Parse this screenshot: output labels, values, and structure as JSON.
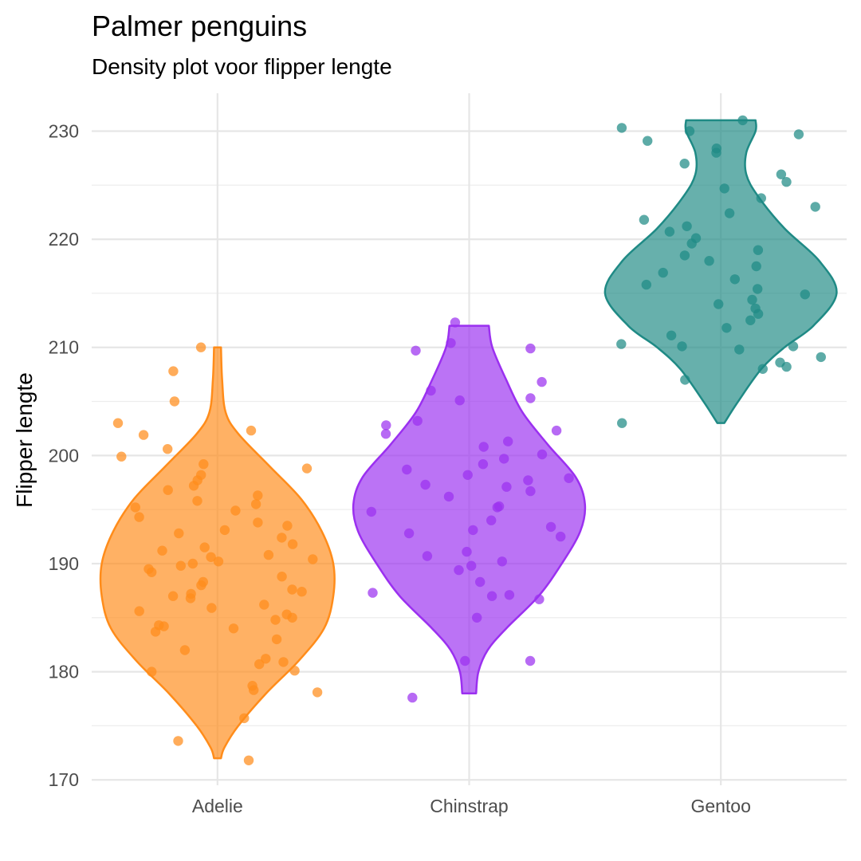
{
  "chart_data": {
    "type": "violin",
    "title": "Palmer penguins",
    "subtitle": "Density plot voor flipper lengte",
    "xlabel": "",
    "ylabel": "Flipper lengte",
    "ylim": [
      169.5,
      233.5
    ],
    "yticks": [
      170,
      180,
      190,
      200,
      210,
      220,
      230
    ],
    "grid": true,
    "categories": [
      "Adelie",
      "Chinstrap",
      "Gentoo"
    ],
    "colors": {
      "Adelie": "#ff8c1a",
      "Chinstrap": "#9b30f0",
      "Gentoo": "#1f8a85"
    },
    "violins": [
      {
        "name": "Adelie",
        "min": 172,
        "max": 210,
        "profile": [
          [
            172,
            0.03
          ],
          [
            173,
            0.06
          ],
          [
            175,
            0.18
          ],
          [
            178,
            0.42
          ],
          [
            181,
            0.7
          ],
          [
            184,
            0.92
          ],
          [
            187,
            1.0
          ],
          [
            190,
            1.0
          ],
          [
            193,
            0.9
          ],
          [
            196,
            0.72
          ],
          [
            199,
            0.45
          ],
          [
            202,
            0.18
          ],
          [
            204,
            0.07
          ],
          [
            207,
            0.04
          ],
          [
            210,
            0.03
          ]
        ]
      },
      {
        "name": "Chinstrap",
        "min": 178,
        "max": 212,
        "profile": [
          [
            178,
            0.06
          ],
          [
            180,
            0.08
          ],
          [
            182,
            0.16
          ],
          [
            184,
            0.32
          ],
          [
            187,
            0.6
          ],
          [
            190,
            0.8
          ],
          [
            193,
            0.96
          ],
          [
            195.5,
            1.0
          ],
          [
            198,
            0.92
          ],
          [
            201,
            0.68
          ],
          [
            204,
            0.46
          ],
          [
            207,
            0.32
          ],
          [
            210,
            0.2
          ],
          [
            212,
            0.17
          ]
        ]
      },
      {
        "name": "Gentoo",
        "min": 203,
        "max": 231,
        "profile": [
          [
            203,
            0.03
          ],
          [
            205,
            0.15
          ],
          [
            208,
            0.35
          ],
          [
            210,
            0.55
          ],
          [
            212,
            0.8
          ],
          [
            215,
            1.0
          ],
          [
            218,
            0.85
          ],
          [
            221,
            0.55
          ],
          [
            224,
            0.32
          ],
          [
            226,
            0.22
          ],
          [
            228,
            0.22
          ],
          [
            230,
            0.3
          ],
          [
            231,
            0.3
          ]
        ]
      }
    ],
    "points": [
      {
        "series": "Adelie",
        "values": [
          171.8,
          173.6,
          175.7,
          178.1,
          178.3,
          178.7,
          180.0,
          180.1,
          180.7,
          180.9,
          181.2,
          182.0,
          183.0,
          183.7,
          184.0,
          184.2,
          184.3,
          184.8,
          185.0,
          185.3,
          185.6,
          185.9,
          186.2,
          186.8,
          187.0,
          187.2,
          187.4,
          187.6,
          188.0,
          188.3,
          188.8,
          189.2,
          189.5,
          189.8,
          190.0,
          190.2,
          190.4,
          190.6,
          190.8,
          191.2,
          191.5,
          191.8,
          192.4,
          192.8,
          193.1,
          193.5,
          193.8,
          194.3,
          194.9,
          195.2,
          195.5,
          195.8,
          196.3,
          196.8,
          197.2,
          197.7,
          198.2,
          198.8,
          199.2,
          199.9,
          200.6,
          201.9,
          202.3,
          203.0,
          205.0,
          207.8,
          210.0
        ]
      },
      {
        "series": "Chinstrap",
        "values": [
          177.6,
          181.0,
          181.0,
          185.0,
          186.7,
          187.0,
          187.1,
          187.3,
          188.3,
          189.4,
          189.8,
          190.2,
          190.7,
          191.1,
          192.5,
          192.8,
          193.1,
          193.4,
          194.0,
          194.8,
          195.2,
          195.3,
          196.2,
          196.7,
          197.1,
          197.3,
          197.7,
          197.9,
          198.2,
          198.7,
          199.2,
          199.7,
          200.1,
          200.8,
          201.3,
          202.0,
          202.3,
          202.8,
          203.2,
          205.1,
          205.3,
          206.0,
          206.8,
          209.7,
          209.9,
          210.4,
          212.3
        ]
      },
      {
        "series": "Gentoo",
        "values": [
          203.0,
          207.0,
          208.0,
          208.2,
          208.6,
          209.1,
          209.8,
          210.1,
          210.1,
          210.3,
          211.1,
          211.8,
          212.5,
          213.1,
          213.6,
          214.0,
          214.4,
          214.9,
          215.4,
          215.8,
          216.3,
          216.9,
          217.5,
          218.0,
          218.5,
          219.0,
          219.6,
          220.1,
          220.7,
          221.2,
          221.8,
          222.4,
          223.0,
          223.8,
          224.7,
          225.3,
          226.0,
          227.0,
          228.0,
          228.4,
          229.1,
          229.7,
          230.0,
          230.3,
          231.0
        ]
      }
    ]
  }
}
